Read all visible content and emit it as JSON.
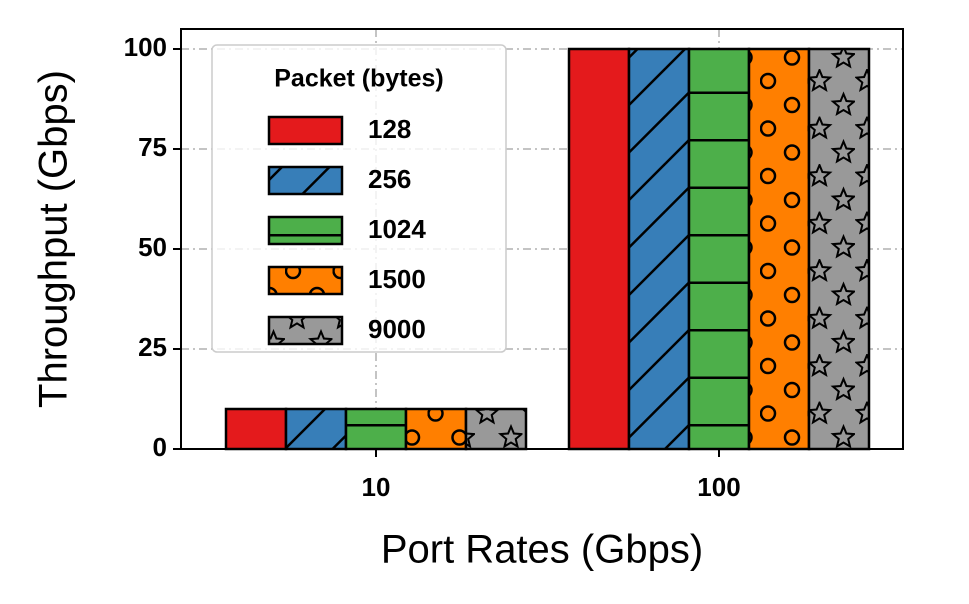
{
  "chart_data": {
    "type": "bar",
    "x_label": "Port Rates (Gbps)",
    "y_label": "Throughput (Gbps)",
    "categories": [
      "10",
      "100"
    ],
    "series": [
      {
        "name": "128",
        "color": "#e41a1c",
        "values": [
          10,
          100
        ]
      },
      {
        "name": "256",
        "color": "#377eb8",
        "hatch": "/",
        "values": [
          10,
          100
        ]
      },
      {
        "name": "1024",
        "color": "#4daf4a",
        "hatch": "-",
        "values": [
          10,
          100
        ]
      },
      {
        "name": "1500",
        "color": "#ff7f00",
        "hatch": "o",
        "values": [
          10,
          100
        ]
      },
      {
        "name": "9000",
        "color": "#999999",
        "hatch": "*",
        "values": [
          10,
          100
        ]
      }
    ],
    "legend_title": "Packet (bytes)",
    "legend": "upper left",
    "ylim": [
      0,
      105
    ],
    "yticks": [
      0,
      25,
      50,
      75,
      100
    ],
    "grid": true
  }
}
